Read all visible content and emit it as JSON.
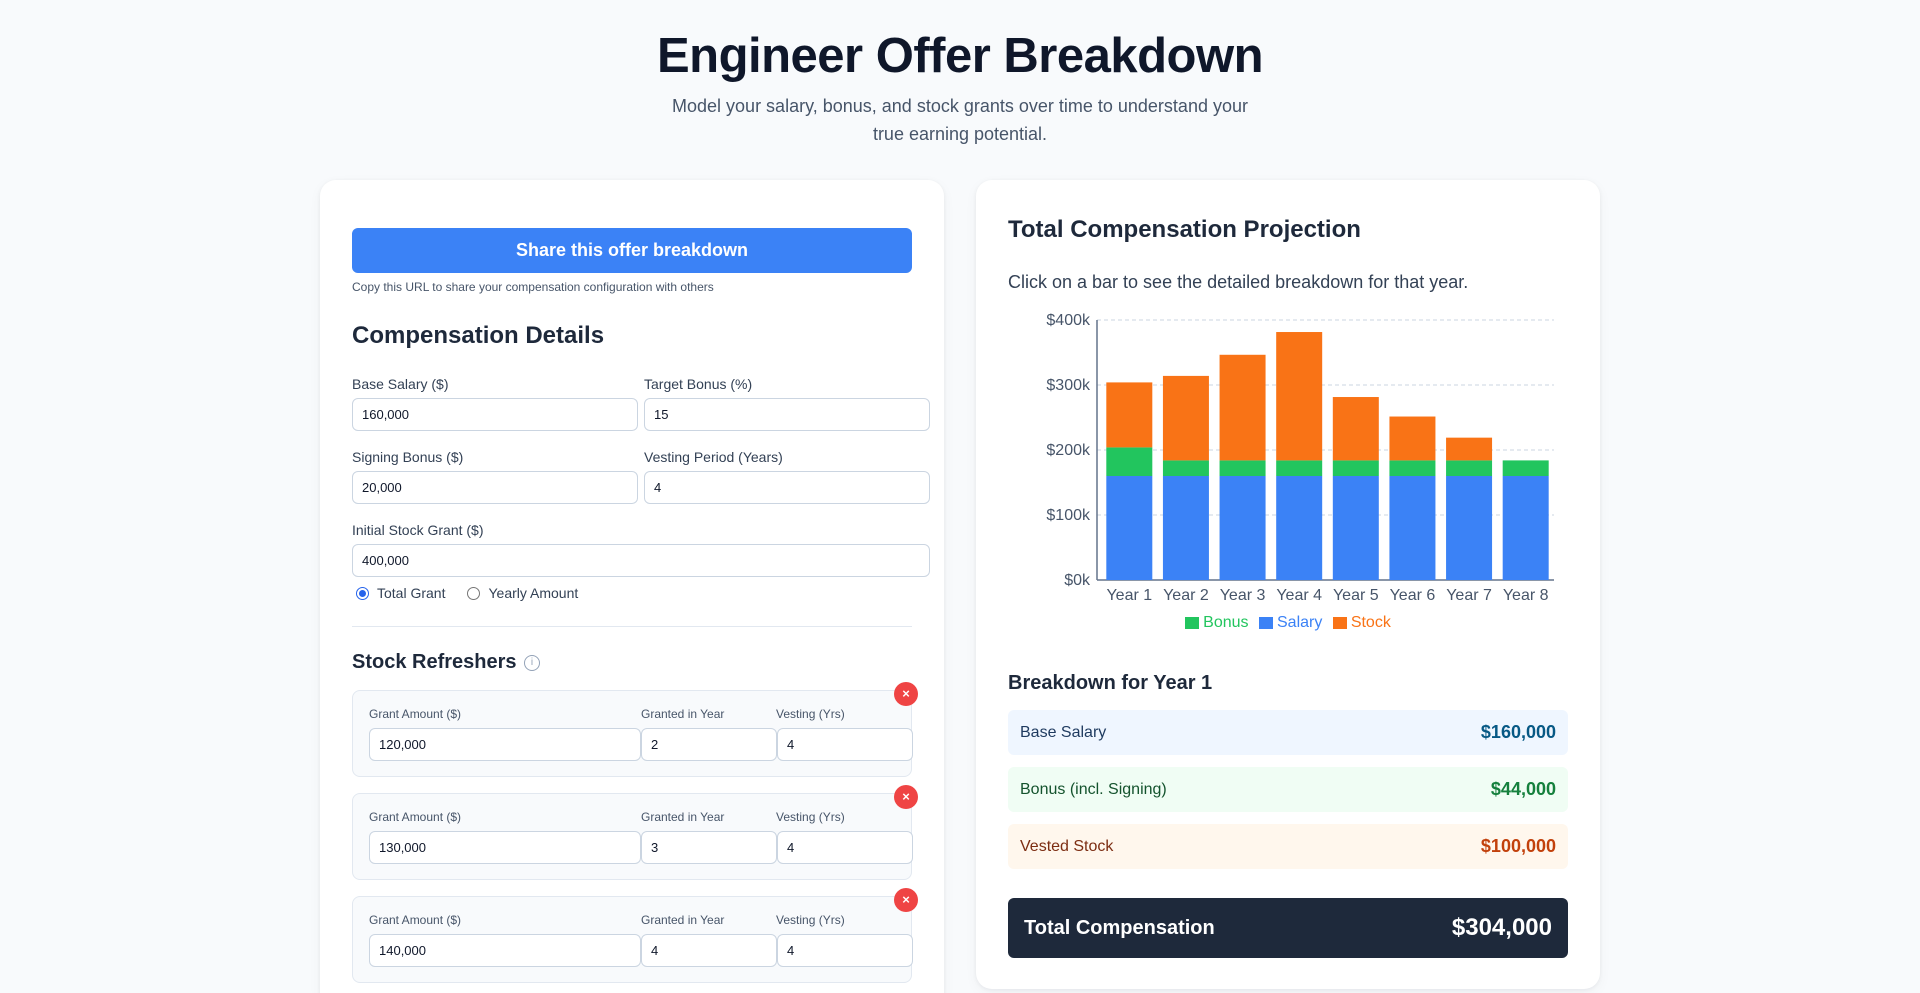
{
  "header": {
    "title": "Engineer Offer Breakdown",
    "subtitle": "Model your salary, bonus, and stock grants over time to understand your true earning potential."
  },
  "share": {
    "button_label": "Share this offer breakdown",
    "note": "Copy this URL to share your compensation configuration with others"
  },
  "compensation": {
    "heading": "Compensation Details",
    "base_salary_label": "Base Salary ($)",
    "base_salary_value": "160,000",
    "target_bonus_label": "Target Bonus (%)",
    "target_bonus_value": "15",
    "signing_bonus_label": "Signing Bonus ($)",
    "signing_bonus_value": "20,000",
    "vesting_period_label": "Vesting Period (Years)",
    "vesting_period_value": "4",
    "initial_grant_label": "Initial Stock Grant ($)",
    "initial_grant_value": "400,000",
    "radio_total": "Total Grant",
    "radio_yearly": "Yearly Amount",
    "radio_selected": "Total Grant"
  },
  "refreshers": {
    "heading": "Stock Refreshers",
    "info_icon": "info-icon",
    "amount_label": "Grant Amount ($)",
    "year_label": "Granted in Year",
    "vesting_label": "Vesting (Yrs)",
    "remove_glyph": "×",
    "items": [
      {
        "amount": "120,000",
        "year": "2",
        "vesting": "4"
      },
      {
        "amount": "130,000",
        "year": "3",
        "vesting": "4"
      },
      {
        "amount": "140,000",
        "year": "4",
        "vesting": "4"
      }
    ]
  },
  "projection": {
    "title": "Total Compensation Projection",
    "hint": "Click on a bar to see the detailed breakdown for that year."
  },
  "breakdown": {
    "title": "Breakdown for Year 1",
    "base_salary_label": "Base Salary",
    "base_salary_value": "$160,000",
    "bonus_label": "Bonus (incl. Signing)",
    "bonus_value": "$44,000",
    "stock_label": "Vested Stock",
    "stock_value": "$100,000",
    "total_label": "Total Compensation",
    "total_value": "$304,000"
  },
  "colors": {
    "salary": "#3b82f6",
    "bonus": "#22c55e",
    "stock": "#f97316"
  },
  "chart_data": {
    "type": "bar",
    "stacked": true,
    "categories": [
      "Year 1",
      "Year 2",
      "Year 3",
      "Year 4",
      "Year 5",
      "Year 6",
      "Year 7",
      "Year 8"
    ],
    "series": [
      {
        "name": "Salary",
        "values": [
          160000,
          160000,
          160000,
          160000,
          160000,
          160000,
          160000,
          160000
        ]
      },
      {
        "name": "Bonus",
        "values": [
          44000,
          24000,
          24000,
          24000,
          24000,
          24000,
          24000,
          24000
        ]
      },
      {
        "name": "Stock",
        "values": [
          100000,
          130000,
          162500,
          197500,
          97500,
          67500,
          35000,
          0
        ]
      }
    ],
    "legend": [
      "Bonus",
      "Salary",
      "Stock"
    ],
    "y_ticks": [
      "$0k",
      "$100k",
      "$200k",
      "$300k",
      "$400k"
    ],
    "y_tick_values": [
      0,
      100000,
      200000,
      300000,
      400000
    ],
    "ylim": [
      0,
      400000
    ],
    "grid": true
  }
}
